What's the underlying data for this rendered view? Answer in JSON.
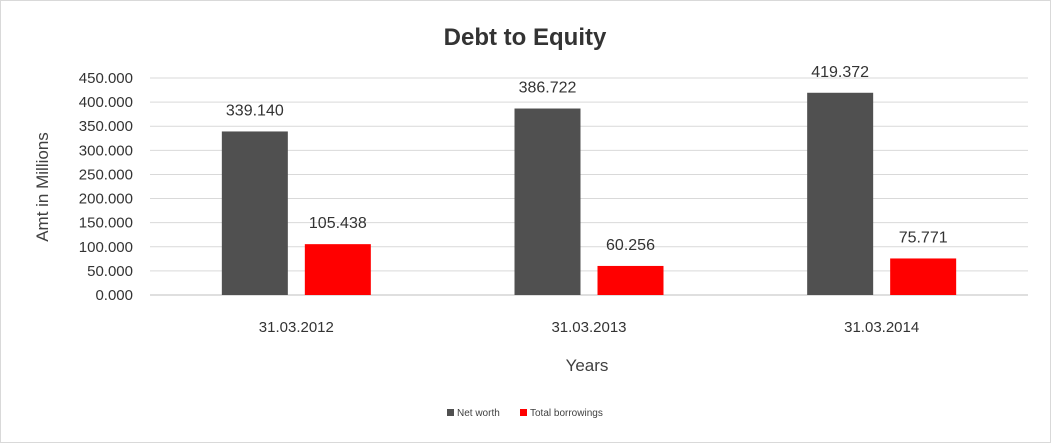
{
  "chart_data": {
    "type": "bar",
    "title": "Debt to Equity",
    "xlabel": "Years",
    "ylabel": "Amt in Millions",
    "categories": [
      "31.03.2012",
      "31.03.2013",
      "31.03.2014"
    ],
    "series": [
      {
        "name": "Net worth",
        "values": [
          339.14,
          386.722,
          419.372
        ],
        "labels": [
          "339.140",
          "386.722",
          "419.372"
        ],
        "color": "#505050"
      },
      {
        "name": "Total borrowings",
        "values": [
          105.438,
          60.256,
          75.771
        ],
        "labels": [
          "105.438",
          "60.256",
          "75.771"
        ],
        "color": "#ff0000"
      }
    ],
    "ylim": [
      0,
      450
    ],
    "yticks": [
      "0.000",
      "50.000",
      "100.000",
      "150.000",
      "200.000",
      "250.000",
      "300.000",
      "350.000",
      "400.000",
      "450.000"
    ],
    "grid": true,
    "legend_position": "bottom"
  }
}
